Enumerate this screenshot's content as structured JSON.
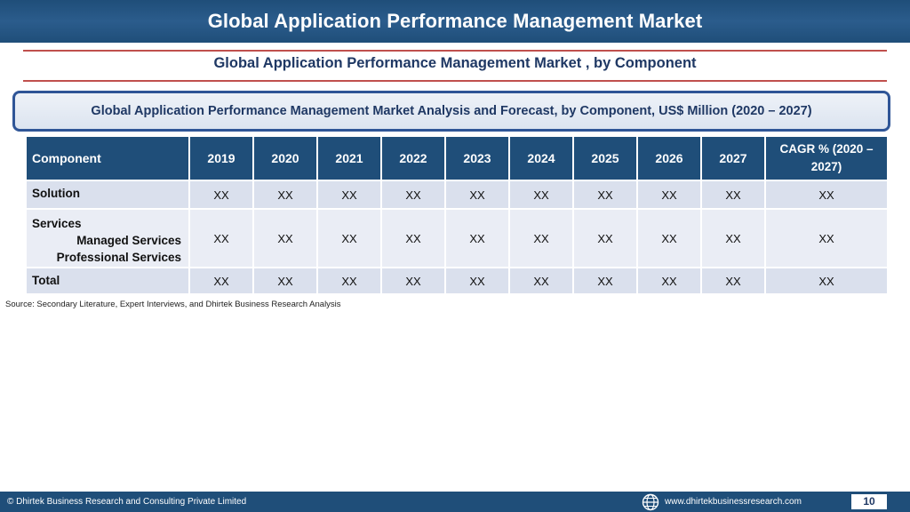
{
  "header": {
    "title": "Global Application Performance Management Market",
    "subtitle": "Global Application Performance Management Market , by Component",
    "banner": "Global Application Performance Management Market  Analysis and Forecast, by Component, US$ Million (2020 – 2027)"
  },
  "table": {
    "columns": [
      "Component",
      "2019",
      "2020",
      "2021",
      "2022",
      "2023",
      "2024",
      "2025",
      "2026",
      "2027",
      "CAGR % (2020 – 2027)"
    ],
    "rows": {
      "solution": {
        "label": "Solution",
        "values": [
          "XX",
          "XX",
          "XX",
          "XX",
          "XX",
          "XX",
          "XX",
          "XX",
          "XX",
          "XX"
        ]
      },
      "services": {
        "label": "Services",
        "sub1": "Managed Services",
        "sub2": "Professional Services",
        "values": [
          "XX",
          "XX",
          "XX",
          "XX",
          "XX",
          "XX",
          "XX",
          "XX",
          "XX",
          "XX"
        ]
      },
      "total": {
        "label": "Total",
        "values": [
          "XX",
          "XX",
          "XX",
          "XX",
          "XX",
          "XX",
          "XX",
          "XX",
          "XX",
          "XX"
        ]
      }
    }
  },
  "source": "Source: Secondary Literature, Expert Interviews, and Dhirtek Business Research Analysis",
  "footer": {
    "copyright": "© Dhirtek Business Research and Consulting Private Limited",
    "website": "www.dhirtekbusinessresearch.com",
    "page_number": "10",
    "globe_icon": "globe-icon"
  },
  "colors": {
    "header_bg": "#1f4e79",
    "rule": "#c0504d",
    "row_bg": "#dae0ed",
    "row_alt_bg": "#eaedf5",
    "title_text": "#1f3864"
  }
}
